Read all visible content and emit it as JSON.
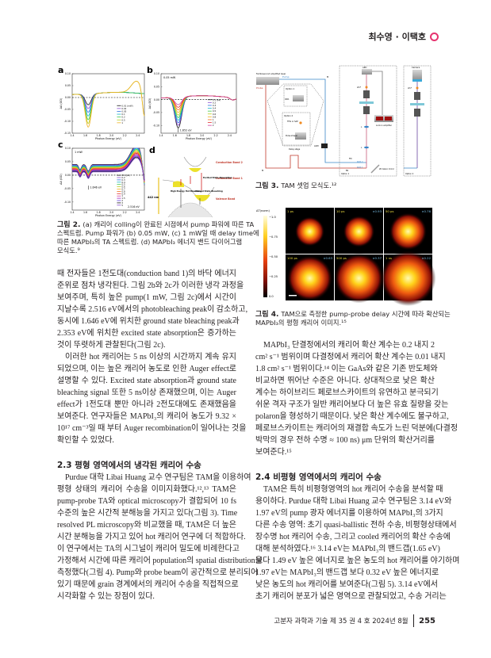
{
  "header": {
    "authors": "최수영 · 이택호",
    "accent": "#e6336f"
  },
  "figure2": {
    "caption_label": "그림 2.",
    "caption_lines": [
      "(a) 캐리어 colling이 완료된 시점에서 pump 파워에 따른 TA",
      "스펙트럼. Pump 파워가 (b) 0.05 mW, (c) 1 mW일 때 delay time에",
      "따른 MAPbI₃의 TA 스펙트럼. (d) MAPbI₃ 에너지 밴드 다이어그램",
      "모식도.⁹"
    ],
    "series_colors": [
      "#1a1a1a",
      "#8a4fd0",
      "#2d6fe0",
      "#17b8c8",
      "#3cc84a",
      "#b8d020",
      "#f0b020",
      "#f07020",
      "#e03030",
      "#d040a0",
      "#a020c0",
      "#6040e0"
    ],
    "xlabel": "Photon Energy (eV)",
    "ylabel": "ΔA (OD)",
    "xticks": [
      "1.4",
      "1.6",
      "1.8",
      "2.0",
      "2.2",
      "2.4"
    ],
    "panels": {
      "a": {
        "letter": "a",
        "note": "",
        "yticks": [
          "0.10",
          "0.05",
          "0.00",
          "-0.05",
          "-0.10",
          "-0.15"
        ],
        "ylim": [
          -0.15,
          0.1
        ],
        "legend": [
          "0.01 (mW)",
          "0.02",
          "0.05",
          "0.1",
          "0.2",
          "0.5",
          "1"
        ]
      },
      "b": {
        "letter": "b",
        "note": "0.05 mW",
        "annotation": "1.652 eV",
        "yticks": [
          "0.10",
          "0.05",
          "0.00",
          "-0.05",
          "-0.10"
        ],
        "ylim": [
          -0.13,
          0.1
        ],
        "legend": [
          "0.1 (ps)",
          "0.2",
          "0.3",
          "0.4",
          "0.5",
          "0.6",
          "0.8",
          "1",
          "1.5",
          "2"
        ]
      },
      "c": {
        "letter": "c",
        "note": "1 mW",
        "annotation": "1.646 eV",
        "annotation2": "2.516 eV",
        "yticks": [
          "0.10",
          "0.05",
          "0.00",
          "-0.05",
          "-0.10"
        ],
        "ylim": [
          -0.13,
          0.1
        ],
        "legend": [
          "0.1 (ps)",
          "0.2",
          "0.3",
          "0.4",
          "0.5",
          "0.6",
          "0.7",
          "0.8",
          "0.9",
          "1",
          "1.5",
          "2",
          "3",
          "5"
        ]
      },
      "d": {
        "letter": "d",
        "labels": {
          "cb2": "Conduction Band 2",
          "cb1": "Conduction Band 1",
          "vb": "Valence Band",
          "wavelength": "442 nm",
          "esa": "Excited State Absorption",
          "hot": "High Energy Hot Bleaching",
          "gsb": "Ground State Bleaching"
        }
      }
    }
  },
  "figure3": {
    "caption_label": "그림 3.",
    "caption_text": "TAM 셋업 모식도.¹²",
    "labels": {
      "laser": "Femtosecond amplified laser",
      "pump": "Pump",
      "probe": "Probe",
      "option1": "Option 1",
      "opa": "OPA",
      "option2": "Option 2",
      "thg": "THG or SAP",
      "shaper": "Pulse shaper",
      "delay": "Delay stage",
      "aom": "AOM",
      "apd": "APD",
      "lpf": "LP-F",
      "lens": "L",
      "lockin": "Lock-in amplifier",
      "camera": "Camera",
      "path1": "Path 1",
      "path2": "Path 2",
      "galvo": "2D Galvo mirror",
      "bs": "BS",
      "fm": "FM",
      "mirror": "M"
    }
  },
  "figure4": {
    "caption_label": "그림 4.",
    "caption_lines": [
      "TAM으로 측정한 pump-probe delay 시간에 따라 확산되는",
      "MAPbI₃의 평형 캐리어 이미지.¹⁵"
    ],
    "colorbar_label": "ΔT(norm)",
    "colorbar_ticks": [
      "−1.0",
      "−0.75",
      "−0.50",
      "−0.25",
      "0.0"
    ],
    "frames": [
      {
        "time": "1 ps",
        "scale": ""
      },
      {
        "time": "10 ps",
        "scale": "×0.93"
      },
      {
        "time": "50 ps",
        "scale": "×0.76"
      },
      {
        "time": "100 ps",
        "scale": "×0.63"
      },
      {
        "time": "500 ps",
        "scale": "×0.37"
      },
      {
        "time": "1 ns",
        "scale": "×0.22"
      }
    ]
  },
  "left": {
    "p1": [
      "때 전자들은 1전도대(conduction band 1)의 바닥 에너지",
      "준위로 점차 냉각된다. 그림 2b와 2c가 이러한 냉각 과정을",
      "보여주며, 특히 높은 pump(1 mW, 그림 2c)에서 시간이",
      "지날수록 2.516 eV에서의 photobleaching peak이 감소하고,",
      "동시에 1.646 eV에 위치한 ground state bleaching peak과",
      "2.353 eV에 위치한 excited state absorption은 증가하는",
      "것이 뚜렷하게 관찰된다(그림 2c)."
    ],
    "p2": [
      "이러한 hot 캐리어는 5 ns 이상의 시간까지 계속 유지",
      "되었으며, 이는 높은 캐리어 농도로 인한 Auger effect로",
      "설명할 수 있다. Excited state absorption과 ground state",
      "bleaching signal 또한 5 ns이상 존재했으며, 이는 Auger",
      "effect가 1전도대 뿐만 아니라 2전도대에도 존재했음을",
      "보여준다. 연구자들은 MAPbI₃의 캐리어 농도가 9.32 ×",
      "10¹⁷ cm⁻³일 때 부터 Auger recombination이 일어나는 것을",
      "확인할 수 있었다."
    ],
    "heading": "2.3 평형 영역에서의 냉각된 캐리어 수송",
    "p3": [
      "Purdue 대학 Libai Huang 교수 연구팀은 TAM을 이용하여",
      "평형 상태의 캐리어 수송을 이미지화했다.¹²,¹³ TAM은",
      "pump-probe TA와 optical microscopy가 결합되어 10 fs",
      "수준의 높은 시간적 분해능을 가지고 있다(그림 3). Time",
      "resolved PL microscopy와 비교했을 때, TAM은 더 높은",
      "시간 분해능을 가지고 있어 hot 캐리어 연구에 더 적합하다.",
      "이 연구에서는 TA의 시그널이 캐리어 밀도에 비례한다고",
      "가정해서 시간에 따른 캐리어 population의 spatial distribution을",
      "측정했다(그림 4). Pump와 probe beam이 공간적으로 분리되어",
      "있기 때문에 grain 경계에서의 캐리어 수송을 직접적으로",
      "시각화할 수 있는 장점이 있다."
    ]
  },
  "right": {
    "p4": [
      "MAPbI₃ 단결정에서의 캐리어 확산 계수는 0.2 내지 2",
      "cm² s⁻¹ 범위이며 다결정에서 캐리어 확산 계수는 0.01 내지",
      "1.8 cm² s⁻¹ 범위이다.¹⁴ 이는 GaAs와 같은 기존 반도체와",
      "비교하면 뛰어난 수준은 아니다. 상대적으로 낮은 확산",
      "계수는 하이브리드 페로브스카이트의 유연하고 분극되기",
      "쉬운 격자 구조가 일반 캐리어보다 더 높은 유효 질량을 갖는",
      "polaron을 형성하기 때문이다. 낮은 확산 계수에도 불구하고,",
      "페로브스카이트는 캐리어의 재결합 속도가 느린 덕분에(다결정",
      "박막의 경우 전하 수명 ≈ 100 ns) μm 단위의 확산거리를",
      "보여준다.¹⁵"
    ],
    "heading": "2.4 비평형 영역에서의 캐리어 수송",
    "p5": [
      "TAM은 특히 비평형영역의 hot 캐리어 수송을 분석할 때",
      "용이하다. Purdue 대학 Libai Huang 교수 연구팀은 3.14 eV와",
      "1.97 eV의 pump 광자 에너지를 이용하여 MAPbI₃의 3가지",
      "다른 수송 영역: 초기 quasi-ballistic 전하 수송, 비평형상태에서",
      "장수명 hot 캐리어 수송, 그리고 cooled 캐리어의 확산 수송에",
      "대해 분석하였다.¹⁶ 3.14 eV는 MAPbI₃의 밴드갭(1.65 eV)",
      "보다 1.49 eV 높은 에너지로 높은 농도의 hot 캐리어를 야기하며",
      "1.97 eV는 MAPbI₃의 밴드갭 보다 0.32 eV 높은 에너지로",
      "낮은 농도의 hot 캐리어를 보여준다(그림 5). 3.14 eV에서",
      "초기 캐리어 분포가 넓은 영역으로 관찰되었고, 수송 거리는"
    ]
  },
  "footer": {
    "journal": "고분자 과학과 기술 제 35 권 4 호 2024년 8월",
    "page": "255"
  }
}
